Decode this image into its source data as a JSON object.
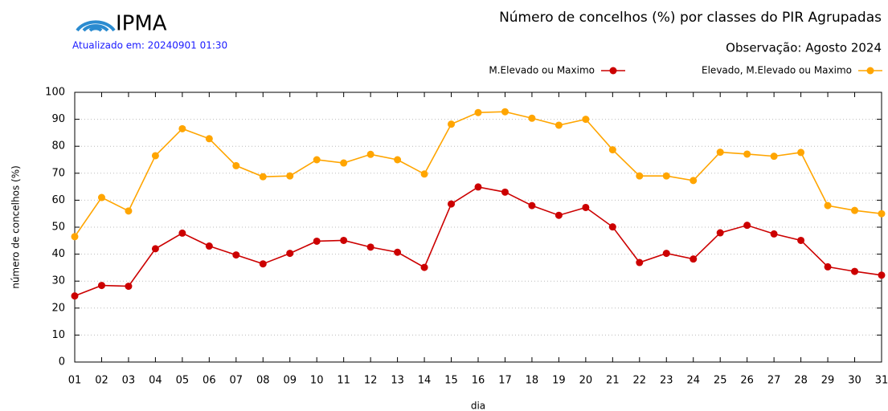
{
  "header": {
    "logo": "IPMA",
    "updated": "Atualizado em: 20240901 01:30"
  },
  "chart_data": {
    "type": "line",
    "title": "Número de concelhos (%) por classes do PIR Agrupadas",
    "subtitle": "Observação: Agosto 2024",
    "x_label": "dia",
    "y_label": "número de concelhos (%)",
    "categories": [
      "01",
      "02",
      "03",
      "04",
      "05",
      "06",
      "07",
      "08",
      "09",
      "10",
      "11",
      "12",
      "13",
      "14",
      "15",
      "16",
      "17",
      "18",
      "19",
      "20",
      "21",
      "22",
      "23",
      "24",
      "25",
      "26",
      "27",
      "28",
      "29",
      "30",
      "31"
    ],
    "series": [
      {
        "name": "M.Elevado ou Maximo",
        "color": "#cc0000",
        "values": [
          24.5,
          28.4,
          28.1,
          42,
          47.8,
          43,
          39.7,
          36.4,
          40.3,
          44.8,
          45.1,
          42.6,
          40.7,
          35.1,
          58.6,
          64.9,
          63,
          58,
          54.4,
          57.3,
          50.1,
          36.9,
          40.3,
          38.2,
          47.9,
          50.7,
          47.5,
          45.1,
          35.3,
          33.6,
          32.2
        ]
      },
      {
        "name": "Elevado, M.Elevado ou Maximo",
        "color": "#ffa500",
        "values": [
          46.5,
          61,
          56,
          76.5,
          86.5,
          82.8,
          72.8,
          68.7,
          69,
          75,
          73.8,
          77,
          75,
          69.7,
          88.2,
          92.5,
          92.8,
          90.4,
          87.8,
          90,
          78.7,
          69,
          69,
          67.3,
          77.8,
          77.1,
          76.3,
          77.7,
          58,
          56.2,
          55
        ]
      }
    ],
    "ylim": [
      0,
      100
    ],
    "yticks": [
      0,
      10,
      20,
      30,
      40,
      50,
      60,
      70,
      80,
      90,
      100
    ],
    "grid": true
  }
}
